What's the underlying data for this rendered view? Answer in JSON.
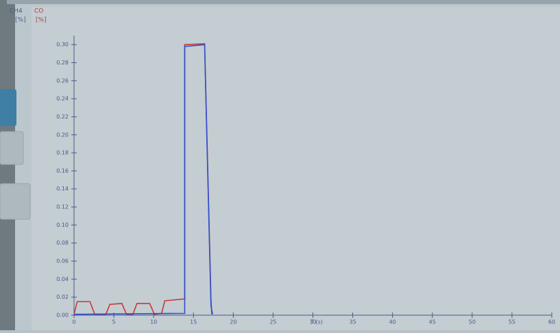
{
  "chart_data": {
    "type": "line",
    "x_label": "T (s)",
    "y_unit": "[%]",
    "xlim": [
      0,
      60
    ],
    "xticks": [
      0,
      5,
      10,
      15,
      20,
      25,
      30,
      35,
      40,
      45,
      50,
      55,
      60
    ],
    "ylim": [
      0,
      0.31
    ],
    "yticks": [
      {
        "value": 0,
        "label": "0.00"
      },
      {
        "value": 0.02,
        "label": "0.02"
      },
      {
        "value": 0.04,
        "label": "0.04"
      },
      {
        "value": 0.06,
        "label": "0.06"
      },
      {
        "value": 0.08,
        "label": "0.08"
      },
      {
        "value": 0.1,
        "label": "0.10"
      },
      {
        "value": 0.12,
        "label": "0.12"
      },
      {
        "value": 0.14,
        "label": "0.14"
      },
      {
        "value": 0.16,
        "label": "0.16"
      },
      {
        "value": 0.18,
        "label": "0.18"
      },
      {
        "value": 0.2,
        "label": "0.20"
      },
      {
        "value": 0.22,
        "label": "0.22"
      },
      {
        "value": 0.24,
        "label": "0.24"
      },
      {
        "value": 0.26,
        "label": "0.26"
      },
      {
        "value": 0.28,
        "label": "0.28"
      },
      {
        "value": 0.3,
        "label": "0.30"
      }
    ],
    "series": [
      {
        "name": "CH4",
        "color": "#2c4fd0",
        "x": [
          0,
          13.9,
          13.9,
          16.4,
          17.2,
          17.4
        ],
        "values": [
          0.001,
          0.002,
          0.298,
          0.3,
          0.01,
          0.001
        ]
      },
      {
        "name": "CO",
        "color": "#c83838",
        "x": [
          0,
          0.4,
          2,
          2.6,
          4,
          4.5,
          6,
          6.6,
          7.4,
          7.9,
          9.5,
          10.1,
          11,
          11.4,
          13.9,
          13.9,
          16.4,
          17.2,
          17.3
        ],
        "values": [
          0.001,
          0.015,
          0.015,
          0.001,
          0.001,
          0.012,
          0.013,
          0.001,
          0.001,
          0.013,
          0.013,
          0.001,
          0.002,
          0.016,
          0.018,
          0.3,
          0.301,
          0.018,
          0.001
        ]
      }
    ]
  }
}
